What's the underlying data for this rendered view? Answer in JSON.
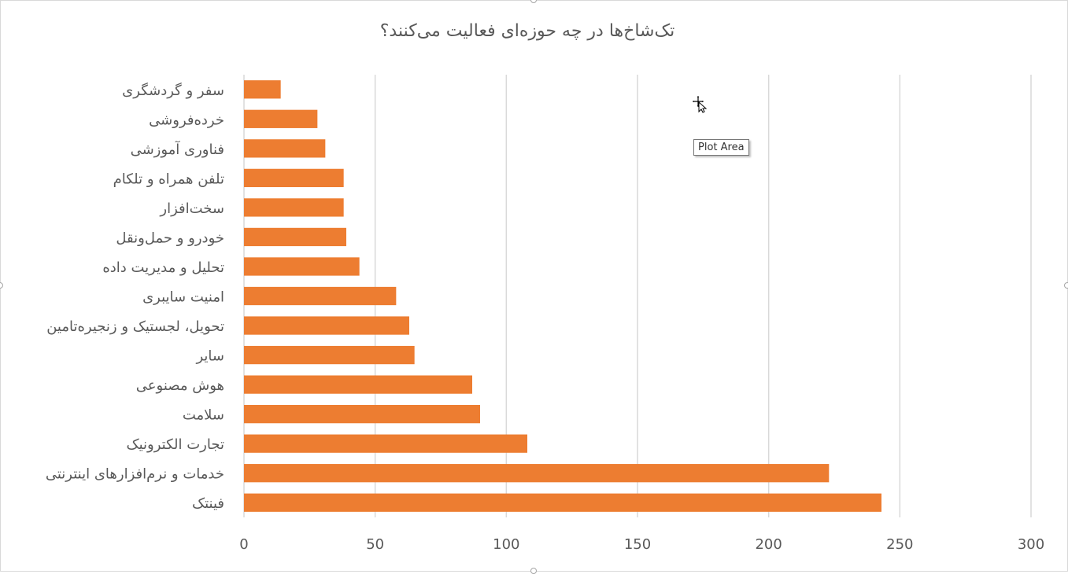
{
  "chart_data": {
    "type": "bar",
    "orientation": "horizontal",
    "title": "تک‌شاخ‌ها در چه حوزه‌ای فعالیت می‌کنند؟",
    "categories": [
      "سفر و گردشگری",
      "خرده‌فروشی",
      "فناوری آموزشی",
      "تلفن همراه و تلکام",
      "سخت‌افزار",
      "خودرو و حمل‌ونقل",
      "تحلیل و مدیریت داده",
      "امنیت سایبری",
      "تحویل، لجستیک و زنجیره‌تامین",
      "سایر",
      "هوش مصنوعی",
      "سلامت",
      "تجارت الکترونیک",
      "خدمات و نرم‌افزارهای اینترنتی",
      "فینتک"
    ],
    "values": [
      14,
      28,
      31,
      38,
      38,
      39,
      44,
      58,
      63,
      65,
      87,
      90,
      108,
      223,
      243
    ],
    "xlim": [
      0,
      300
    ],
    "xticks": [
      0,
      50,
      100,
      150,
      200,
      250,
      300
    ],
    "grid": true,
    "legend": "none",
    "bar_color": "#ED7D31"
  },
  "tooltip": {
    "label": "Plot Area"
  },
  "colors": {
    "gridline": "#d9d9d9",
    "text": "#595959"
  }
}
